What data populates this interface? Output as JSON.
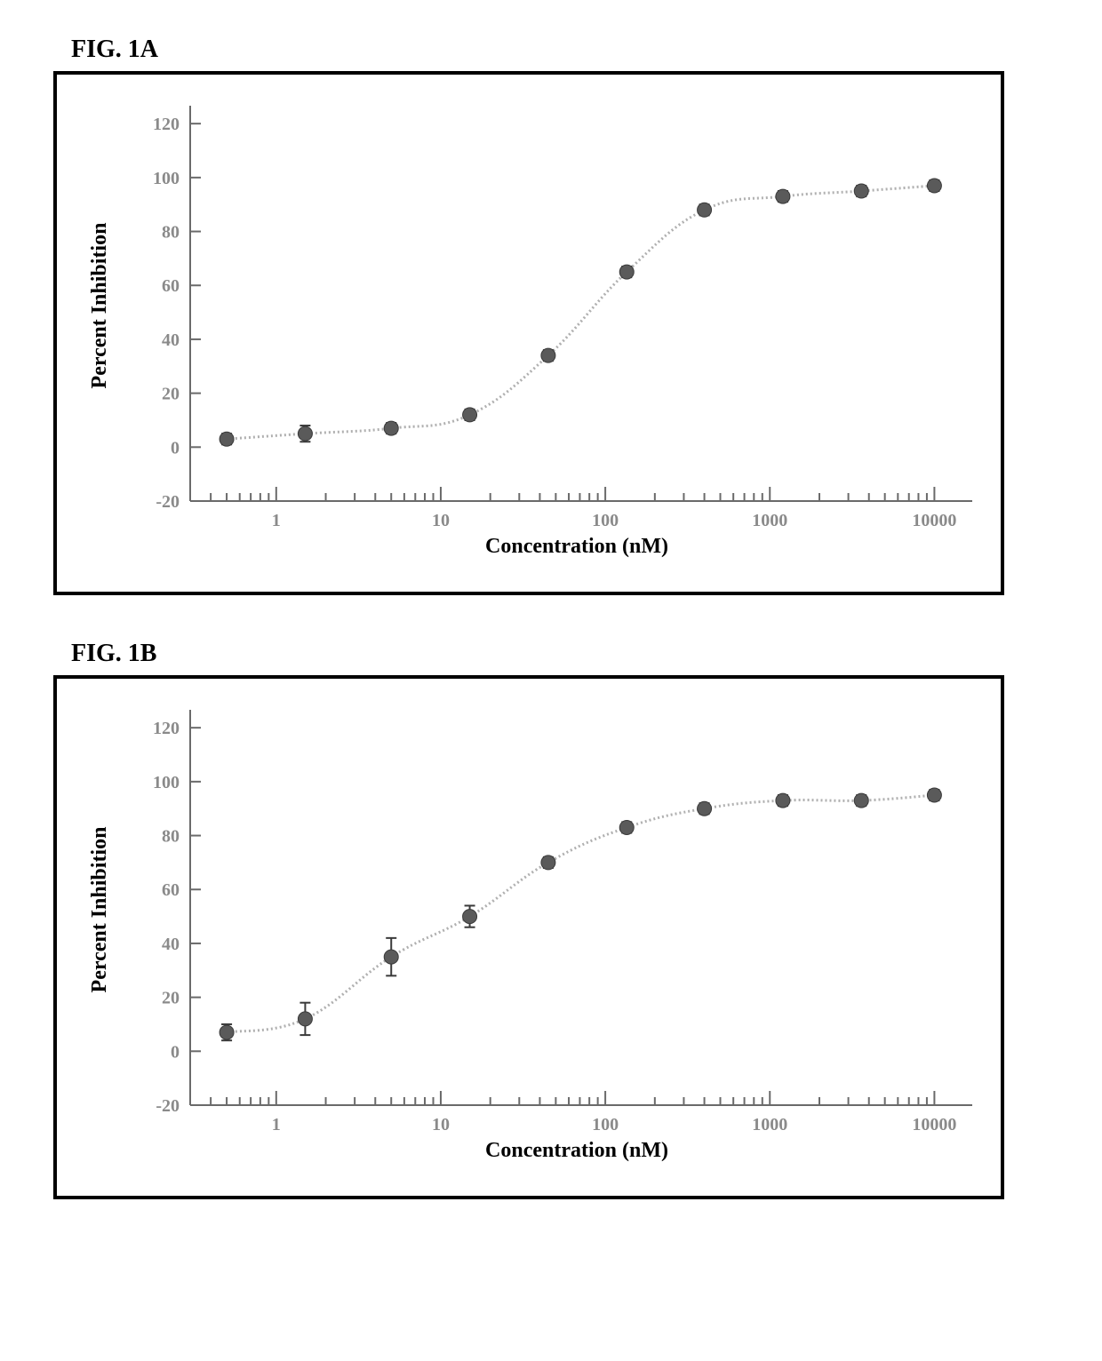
{
  "figures": [
    {
      "label": "FIG. 1A",
      "chart": {
        "type": "scatter-line",
        "xlabel": "Concentration (nM)",
        "ylabel": "Percent Inhibition",
        "x_scale": "log",
        "xlim": [
          0.3,
          15000
        ],
        "ylim": [
          -20,
          125
        ],
        "yticks": [
          -20,
          0,
          20,
          40,
          60,
          80,
          100,
          120
        ],
        "xticks": [
          1,
          10,
          100,
          1000,
          10000
        ],
        "title_fontsize": 24,
        "tick_fontsize": 20,
        "axis_color": "#6a6a6a",
        "tick_color": "#6a6a6a",
        "tick_label_color": "#8a8a8a",
        "line_color": "#b0b0b0",
        "line_width": 3,
        "marker_fill": "#5a5a5a",
        "marker_stroke": "#3a3a3a",
        "marker_radius": 8,
        "background_color": "#ffffff",
        "data": [
          {
            "x": 0.5,
            "y": 3,
            "err": 2
          },
          {
            "x": 1.5,
            "y": 5,
            "err": 3
          },
          {
            "x": 5,
            "y": 7,
            "err": 2
          },
          {
            "x": 15,
            "y": 12,
            "err": 2
          },
          {
            "x": 45,
            "y": 34,
            "err": 2
          },
          {
            "x": 135,
            "y": 65,
            "err": 2
          },
          {
            "x": 400,
            "y": 88,
            "err": 2
          },
          {
            "x": 1200,
            "y": 93,
            "err": 2
          },
          {
            "x": 3600,
            "y": 95,
            "err": 2
          },
          {
            "x": 10000,
            "y": 97,
            "err": 2
          }
        ]
      }
    },
    {
      "label": "FIG. 1B",
      "chart": {
        "type": "scatter-line",
        "xlabel": "Concentration (nM)",
        "ylabel": "Percent Inhibition",
        "x_scale": "log",
        "xlim": [
          0.3,
          15000
        ],
        "ylim": [
          -20,
          125
        ],
        "yticks": [
          -20,
          0,
          20,
          40,
          60,
          80,
          100,
          120
        ],
        "xticks": [
          1,
          10,
          100,
          1000,
          10000
        ],
        "title_fontsize": 24,
        "tick_fontsize": 20,
        "axis_color": "#6a6a6a",
        "tick_color": "#6a6a6a",
        "tick_label_color": "#8a8a8a",
        "line_color": "#b0b0b0",
        "line_width": 3,
        "marker_fill": "#5a5a5a",
        "marker_stroke": "#3a3a3a",
        "marker_radius": 8,
        "background_color": "#ffffff",
        "data": [
          {
            "x": 0.5,
            "y": 7,
            "err": 3
          },
          {
            "x": 1.5,
            "y": 12,
            "err": 6
          },
          {
            "x": 5,
            "y": 35,
            "err": 7
          },
          {
            "x": 15,
            "y": 50,
            "err": 4
          },
          {
            "x": 45,
            "y": 70,
            "err": 2
          },
          {
            "x": 135,
            "y": 83,
            "err": 2
          },
          {
            "x": 400,
            "y": 90,
            "err": 2
          },
          {
            "x": 1200,
            "y": 93,
            "err": 2
          },
          {
            "x": 3600,
            "y": 93,
            "err": 2
          },
          {
            "x": 10000,
            "y": 95,
            "err": 2
          }
        ]
      }
    }
  ]
}
